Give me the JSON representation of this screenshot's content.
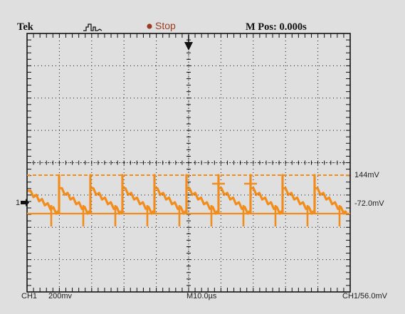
{
  "header": {
    "brand": "Tek",
    "acq_icon": "acquisition-waveform-icon",
    "run_state": "Stop",
    "run_state_color": "#9b3b1f",
    "position_readout": "M Pos: 0.000s"
  },
  "trace": {
    "color": "#f28c1b",
    "channel_marker": "1",
    "upper_cursor_label": "144mV",
    "lower_cursor_label": "-72.0mV",
    "trigger_icon": "trigger-position-arrow-icon"
  },
  "footer": {
    "channel": "CH1",
    "volts_per_div": "200mv",
    "time_base": "M10.0µs",
    "trigger_info": "CH1/56.0mV"
  },
  "colors": {
    "background": "#dfdfdf",
    "graticule": "#111111",
    "waveform": "#f28c1b"
  }
}
